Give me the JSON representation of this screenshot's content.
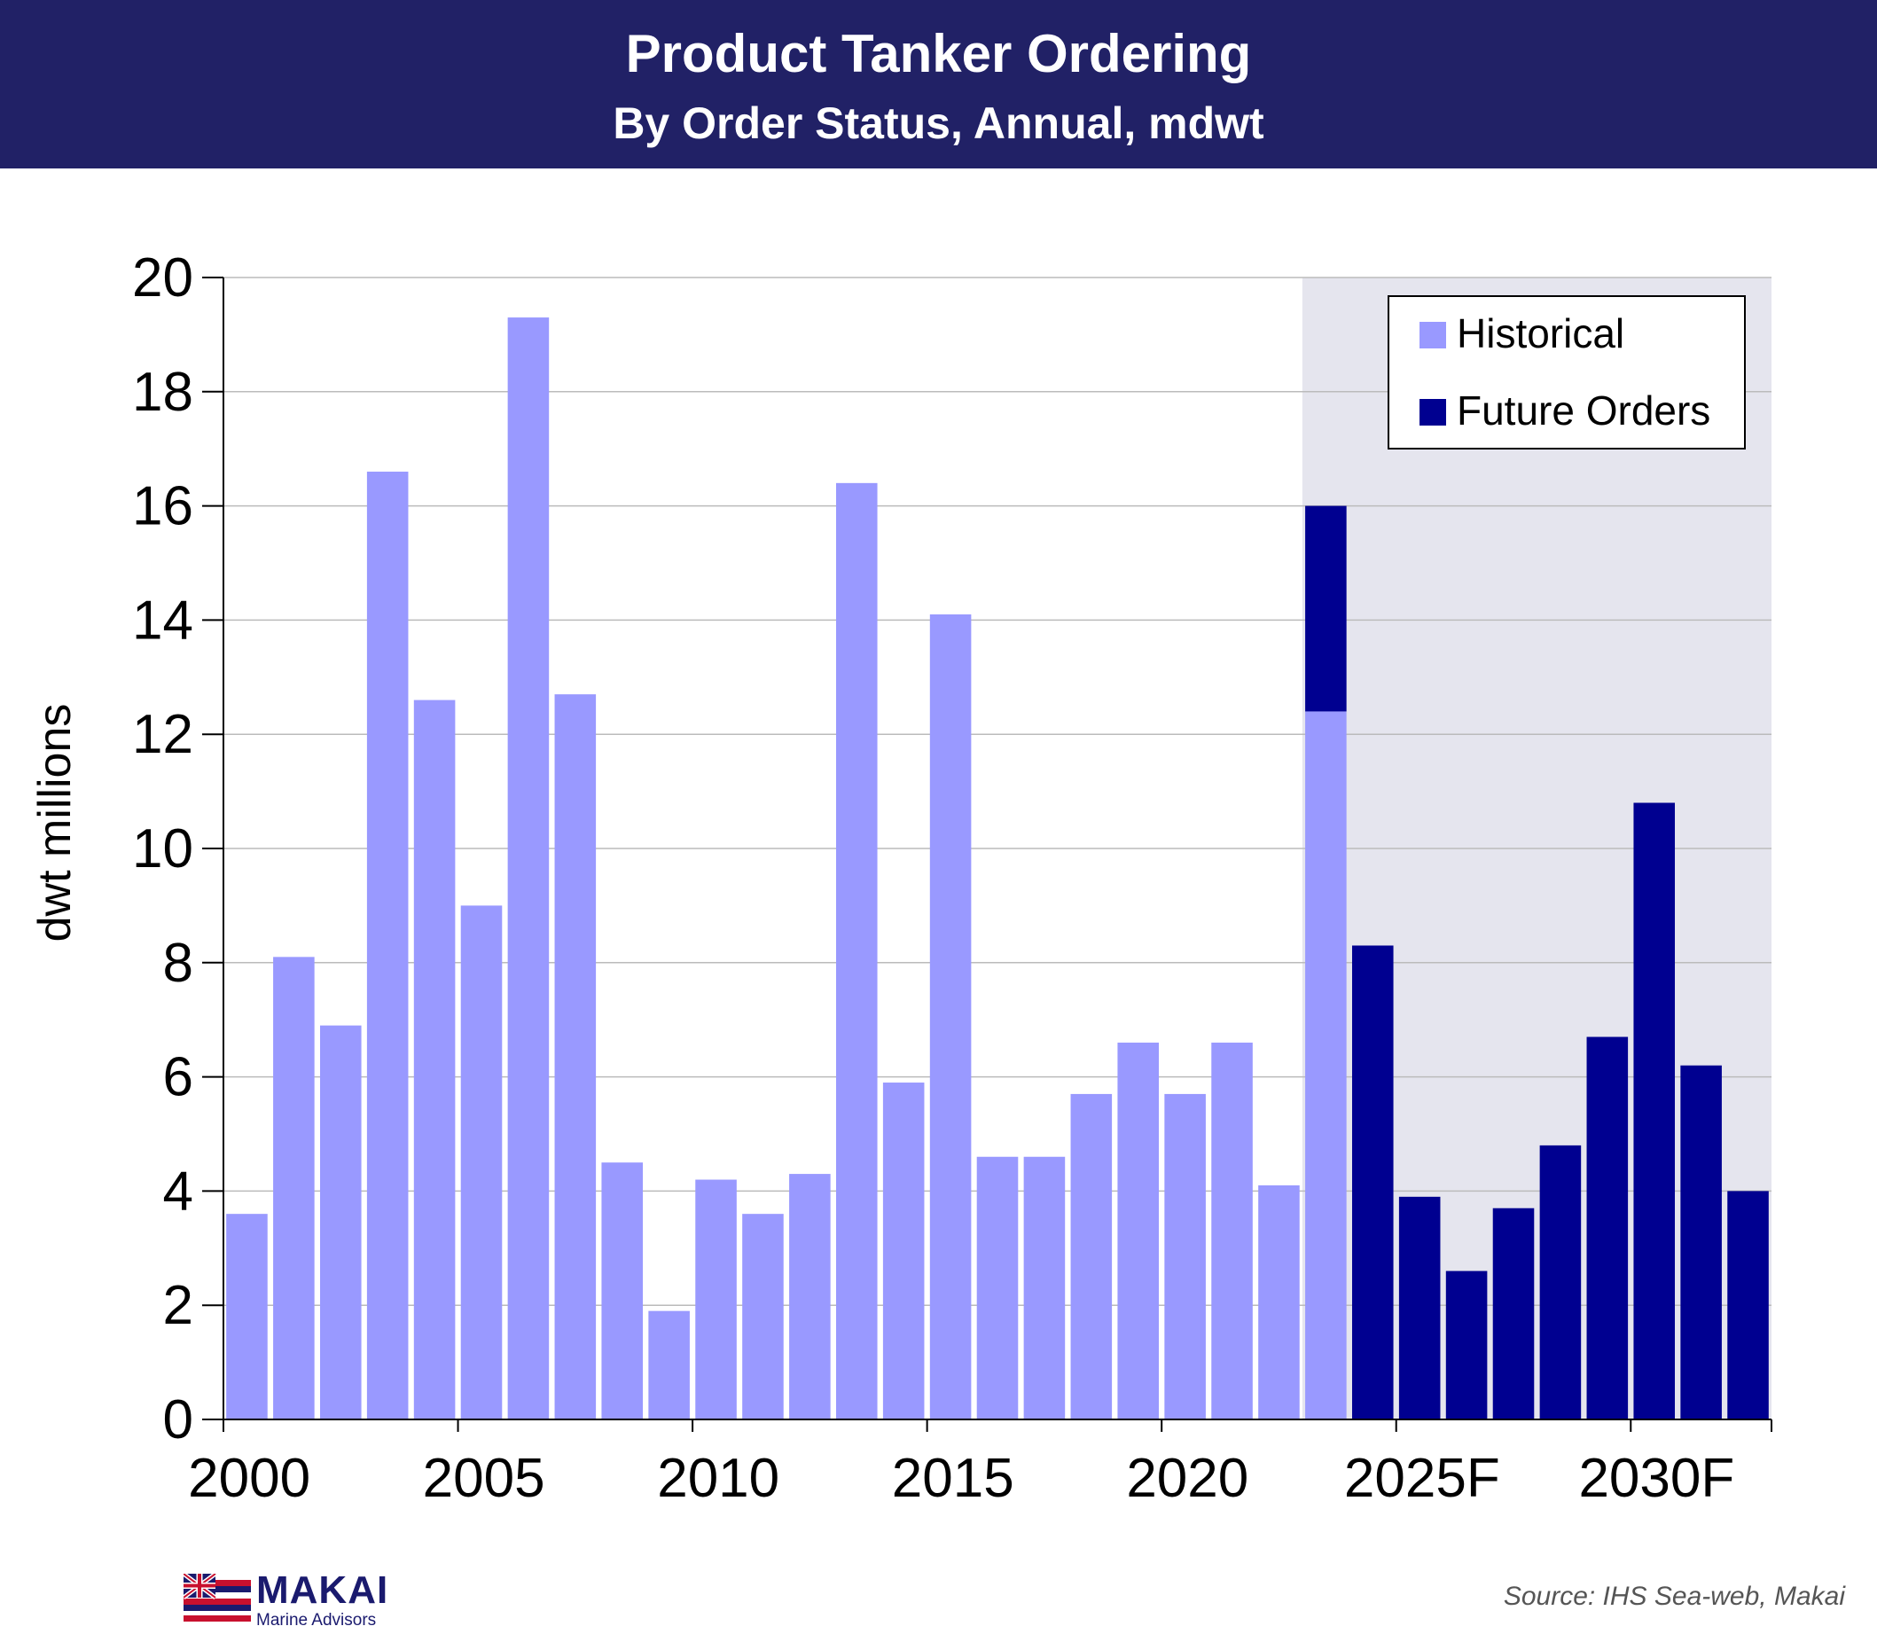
{
  "header": {
    "title": "Product Tanker Ordering",
    "subtitle": "By Order Status, Annual, mdwt"
  },
  "colors": {
    "historical": "#9999ff",
    "future": "#000090",
    "header_bg": "#212166",
    "forecast_shade": "#e5e5ee"
  },
  "chart_data": {
    "type": "bar",
    "stacked": true,
    "title": "Product Tanker Ordering",
    "subtitle": "By Order Status, Annual, mdwt",
    "ylabel": "dwt millions",
    "xlabel": "",
    "ylim": [
      0,
      20
    ],
    "yticks": [
      0,
      2,
      4,
      6,
      8,
      10,
      12,
      14,
      16,
      18,
      20
    ],
    "xtick_labels": [
      "2000",
      "2005",
      "2010",
      "2015",
      "2020",
      "2025F",
      "2030F"
    ],
    "grid": true,
    "legend_position": "top-right",
    "forecast_shaded_from": 2023,
    "categories": [
      2000,
      2001,
      2002,
      2003,
      2004,
      2005,
      2006,
      2007,
      2008,
      2009,
      2010,
      2011,
      2012,
      2013,
      2014,
      2015,
      2016,
      2017,
      2018,
      2019,
      2020,
      2021,
      2022,
      2023,
      2024,
      2025,
      2026,
      2027,
      2028,
      2029,
      2030,
      2031,
      2032
    ],
    "series": [
      {
        "name": "Historical",
        "values": [
          3.6,
          8.1,
          6.9,
          16.6,
          12.6,
          9.0,
          19.3,
          12.7,
          4.5,
          1.9,
          4.2,
          3.6,
          4.3,
          16.4,
          5.9,
          14.1,
          4.6,
          4.6,
          5.7,
          6.6,
          5.7,
          6.6,
          4.1,
          12.4,
          0,
          0,
          0,
          0,
          0,
          0,
          0,
          0,
          0
        ]
      },
      {
        "name": "Future Orders",
        "values": [
          0,
          0,
          0,
          0,
          0,
          0,
          0,
          0,
          0,
          0,
          0,
          0,
          0,
          0,
          0,
          0,
          0,
          0,
          0,
          0,
          0,
          0,
          0,
          3.6,
          8.3,
          3.9,
          2.6,
          3.7,
          4.8,
          6.7,
          10.8,
          6.2,
          4.0
        ]
      }
    ]
  },
  "logo": {
    "name": "MAKAI",
    "subtitle": "Marine Advisors"
  },
  "source": "Source: IHS Sea-web, Makai"
}
